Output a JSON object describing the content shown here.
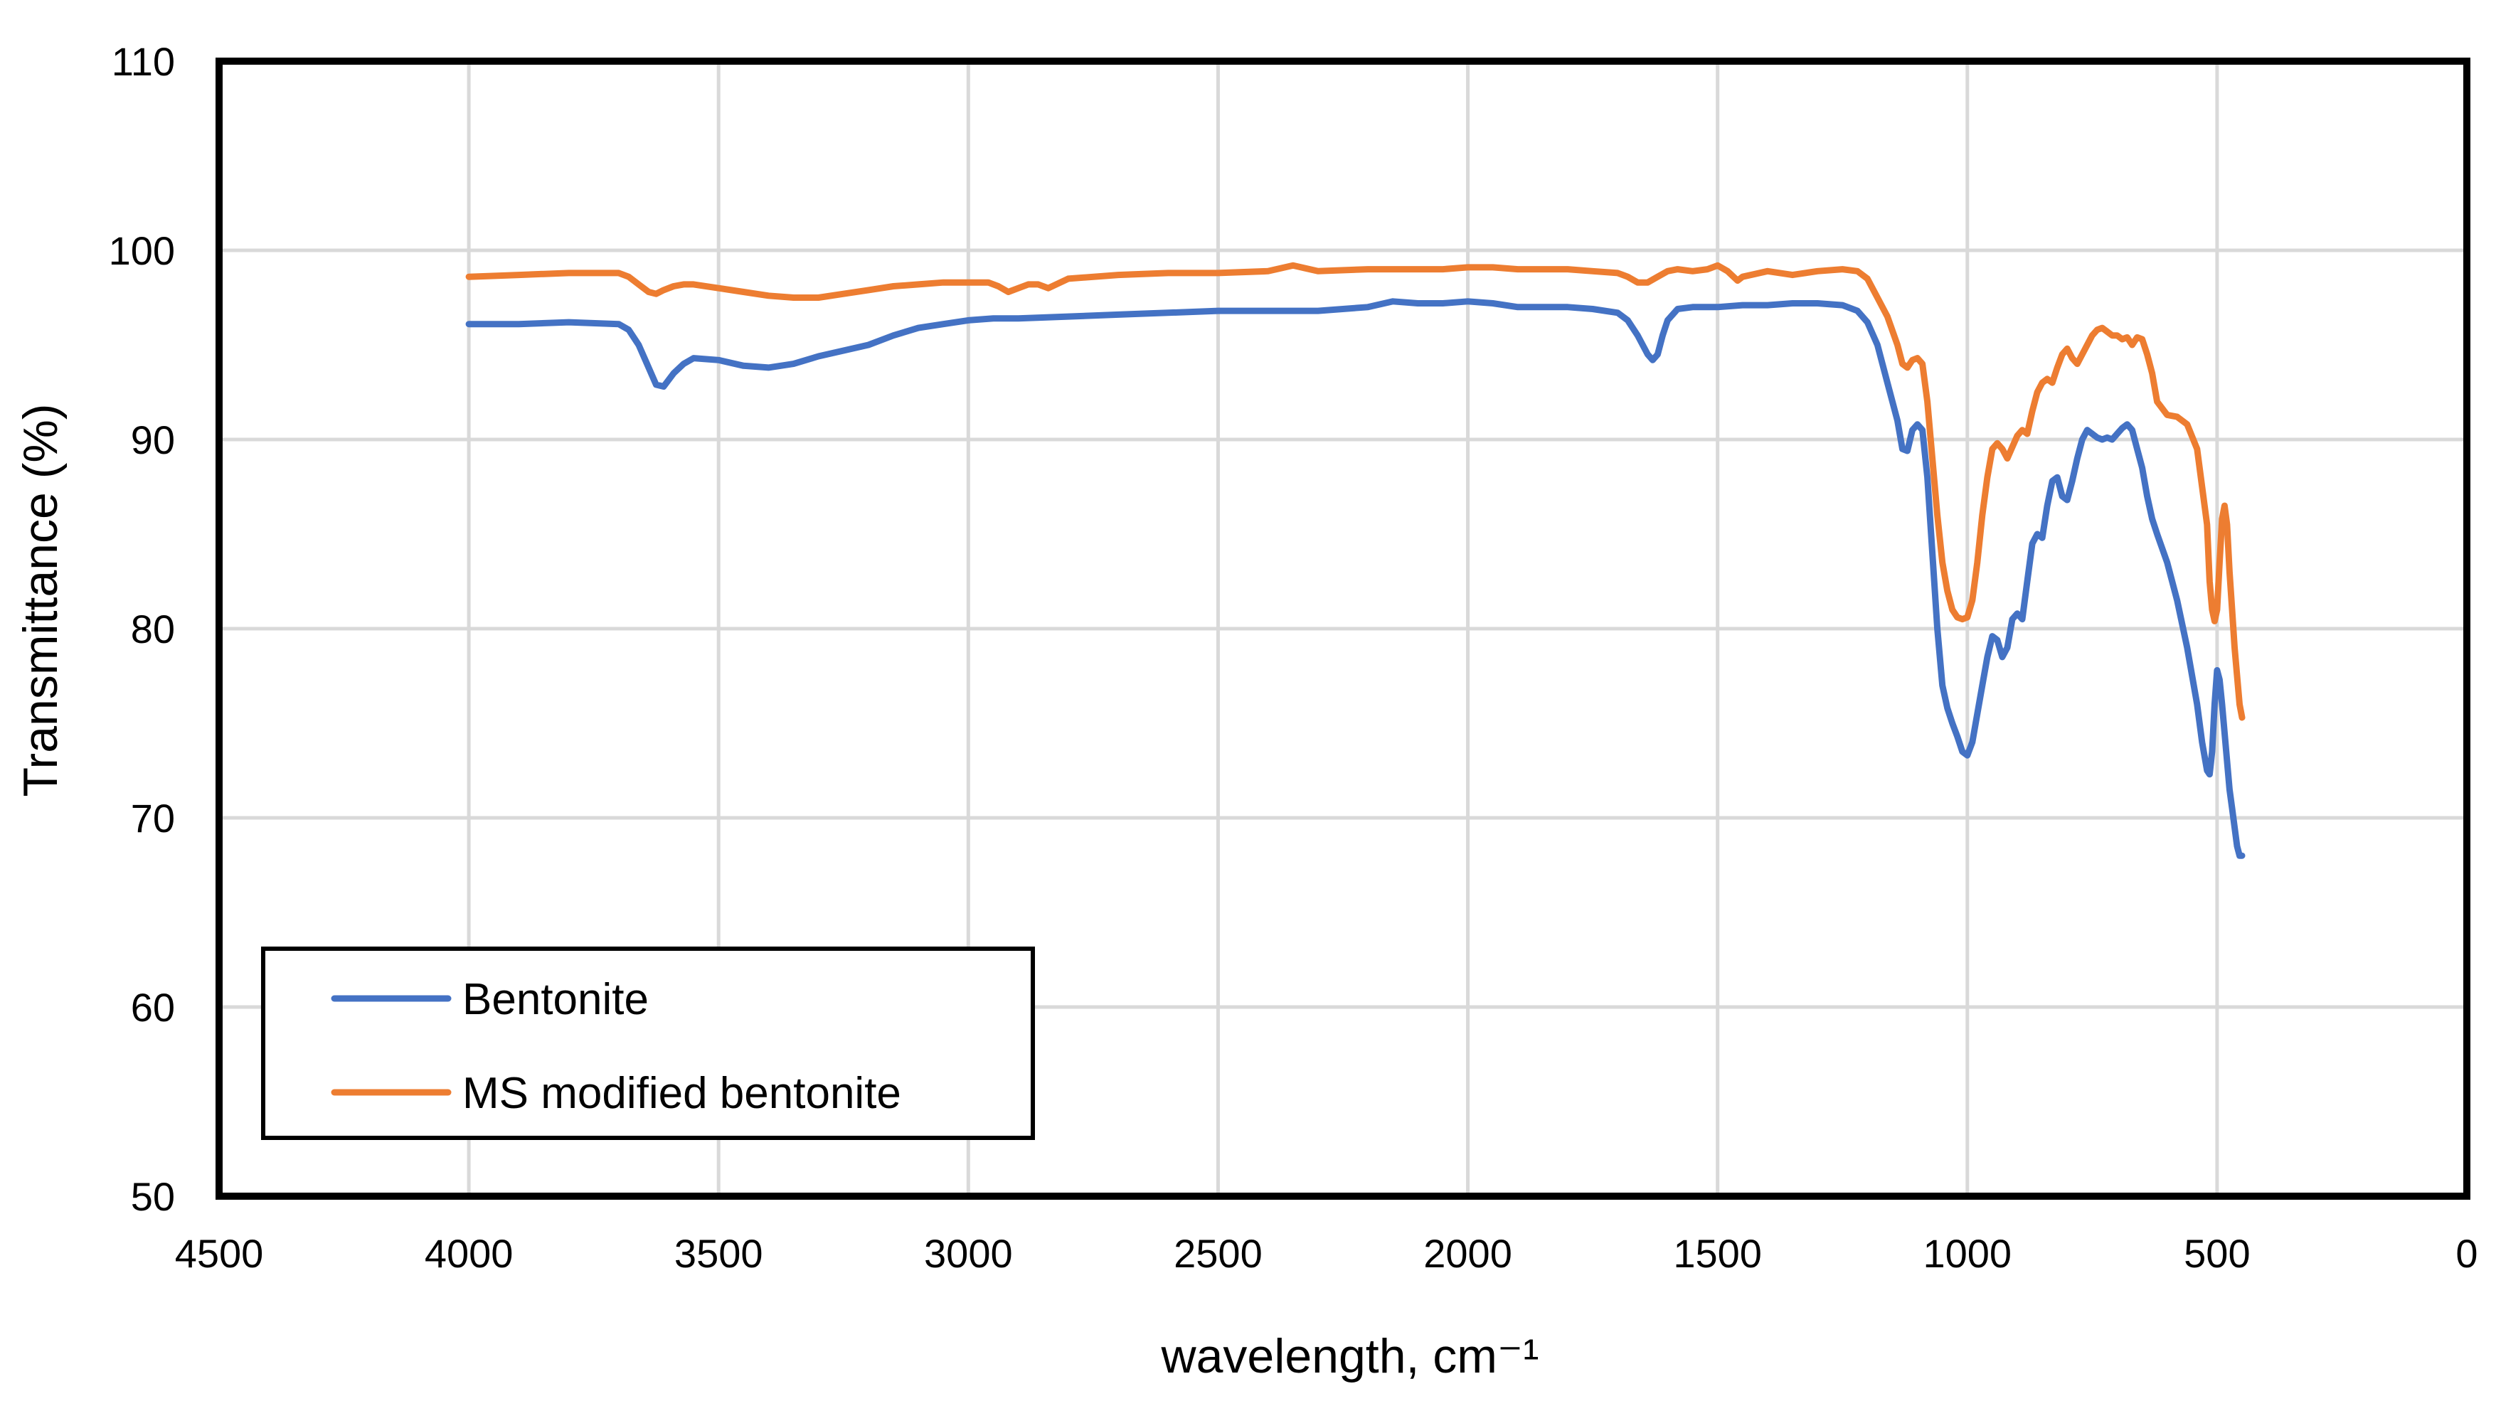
{
  "chart_data": {
    "type": "line",
    "xlabel": "wavelength, cm⁻¹",
    "ylabel": "Transmittance (%)",
    "xlim": [
      4500,
      0
    ],
    "ylim": [
      50,
      110
    ],
    "x_reversed": true,
    "x_ticks": [
      4500,
      4000,
      3500,
      3000,
      2500,
      2000,
      1500,
      1000,
      500,
      0
    ],
    "y_ticks": [
      50,
      60,
      70,
      80,
      90,
      100,
      110
    ],
    "x_tick_labels": [
      "4500",
      "4000",
      "3500",
      "3000",
      "2500",
      "2000",
      "1500",
      "1000",
      "500",
      "0"
    ],
    "y_tick_labels": [
      "50",
      "60",
      "70",
      "80",
      "90",
      "100",
      "110"
    ],
    "grid": true,
    "legend_position": "bottom-left",
    "series": [
      {
        "name": "Bentonite",
        "color": "#4472C4",
        "x": [
          4000,
          3900,
          3800,
          3700,
          3680,
          3660,
          3640,
          3625,
          3610,
          3590,
          3570,
          3550,
          3500,
          3450,
          3400,
          3350,
          3300,
          3250,
          3200,
          3150,
          3100,
          3050,
          3000,
          2950,
          2900,
          2800,
          2700,
          2600,
          2500,
          2400,
          2300,
          2200,
          2150,
          2100,
          2050,
          2000,
          1950,
          1900,
          1800,
          1750,
          1700,
          1680,
          1660,
          1640,
          1630,
          1620,
          1610,
          1600,
          1580,
          1550,
          1500,
          1450,
          1400,
          1350,
          1300,
          1250,
          1220,
          1200,
          1180,
          1160,
          1140,
          1130,
          1120,
          1110,
          1100,
          1090,
          1080,
          1070,
          1060,
          1050,
          1040,
          1030,
          1020,
          1010,
          1000,
          990,
          980,
          970,
          960,
          950,
          940,
          930,
          920,
          910,
          900,
          890,
          880,
          870,
          860,
          850,
          840,
          830,
          820,
          810,
          800,
          790,
          780,
          770,
          760,
          750,
          740,
          730,
          720,
          710,
          700,
          690,
          680,
          670,
          660,
          650,
          640,
          630,
          620,
          600,
          580,
          560,
          540,
          530,
          520,
          515,
          510,
          505,
          500,
          495,
          490,
          485,
          480,
          475,
          470,
          465,
          460,
          455,
          450
        ],
        "y": [
          96.1,
          96.1,
          96.2,
          96.1,
          95.8,
          95.0,
          93.8,
          92.9,
          92.8,
          93.5,
          94.0,
          94.3,
          94.2,
          93.9,
          93.8,
          94.0,
          94.4,
          94.7,
          95.0,
          95.5,
          95.9,
          96.1,
          96.3,
          96.4,
          96.4,
          96.5,
          96.6,
          96.7,
          96.8,
          96.8,
          96.8,
          97.0,
          97.3,
          97.2,
          97.2,
          97.3,
          97.2,
          97.0,
          97.0,
          96.9,
          96.7,
          96.3,
          95.5,
          94.5,
          94.2,
          94.5,
          95.5,
          96.3,
          96.9,
          97.0,
          97.0,
          97.1,
          97.1,
          97.2,
          97.2,
          97.1,
          96.8,
          96.2,
          95.0,
          93.0,
          91.0,
          89.5,
          89.4,
          90.5,
          90.8,
          90.5,
          88.0,
          84.0,
          80.0,
          77.0,
          75.8,
          75.0,
          74.3,
          73.5,
          73.3,
          74.0,
          75.5,
          77.0,
          78.5,
          79.6,
          79.4,
          78.5,
          79.0,
          80.5,
          80.8,
          80.5,
          82.5,
          84.5,
          85.0,
          84.8,
          86.5,
          87.8,
          88.0,
          87.0,
          86.8,
          87.8,
          89.0,
          90.0,
          90.5,
          90.3,
          90.1,
          90.0,
          90.1,
          90.0,
          90.3,
          90.6,
          90.8,
          90.5,
          89.5,
          88.5,
          87.0,
          85.8,
          85.0,
          83.5,
          81.5,
          79.0,
          76.0,
          74.0,
          72.5,
          72.3,
          73.5,
          76.0,
          77.8,
          77.3,
          76.0,
          74.5,
          73.0,
          71.5,
          70.5,
          69.5,
          68.5,
          68.0,
          68.0
        ]
      },
      {
        "name": "MS modified bentonite",
        "color": "#ED7D31",
        "x": [
          4000,
          3900,
          3800,
          3700,
          3680,
          3660,
          3640,
          3625,
          3610,
          3590,
          3570,
          3550,
          3500,
          3450,
          3400,
          3350,
          3300,
          3250,
          3200,
          3150,
          3100,
          3050,
          3000,
          2960,
          2940,
          2920,
          2900,
          2880,
          2860,
          2840,
          2800,
          2700,
          2600,
          2500,
          2400,
          2350,
          2300,
          2200,
          2150,
          2100,
          2050,
          2000,
          1950,
          1900,
          1800,
          1750,
          1700,
          1680,
          1660,
          1640,
          1620,
          1600,
          1580,
          1550,
          1520,
          1500,
          1480,
          1460,
          1450,
          1400,
          1350,
          1300,
          1250,
          1220,
          1200,
          1180,
          1160,
          1140,
          1130,
          1120,
          1110,
          1100,
          1090,
          1080,
          1070,
          1060,
          1050,
          1040,
          1030,
          1020,
          1010,
          1000,
          990,
          980,
          970,
          960,
          950,
          940,
          930,
          920,
          910,
          900,
          890,
          880,
          870,
          860,
          850,
          840,
          830,
          820,
          810,
          800,
          790,
          780,
          770,
          760,
          750,
          740,
          730,
          720,
          710,
          700,
          690,
          680,
          670,
          660,
          650,
          640,
          630,
          620,
          600,
          580,
          560,
          540,
          530,
          520,
          515,
          510,
          505,
          500,
          495,
          490,
          485,
          480,
          475,
          470,
          465,
          460,
          455,
          450
        ],
        "y": [
          98.6,
          98.7,
          98.8,
          98.8,
          98.6,
          98.2,
          97.8,
          97.7,
          97.9,
          98.1,
          98.2,
          98.2,
          98.0,
          97.8,
          97.6,
          97.5,
          97.5,
          97.7,
          97.9,
          98.1,
          98.2,
          98.3,
          98.3,
          98.3,
          98.1,
          97.8,
          98.0,
          98.2,
          98.2,
          98.0,
          98.5,
          98.7,
          98.8,
          98.8,
          98.9,
          99.2,
          98.9,
          99.0,
          99.0,
          99.0,
          99.0,
          99.1,
          99.1,
          99.0,
          99.0,
          98.9,
          98.8,
          98.6,
          98.3,
          98.3,
          98.6,
          98.9,
          99.0,
          98.9,
          99.0,
          99.2,
          98.9,
          98.4,
          98.6,
          98.9,
          98.7,
          98.9,
          99.0,
          98.9,
          98.5,
          97.5,
          96.5,
          95.0,
          94.0,
          93.8,
          94.2,
          94.3,
          94.0,
          92.0,
          89.0,
          86.0,
          83.5,
          82.0,
          81.0,
          80.6,
          80.5,
          80.6,
          81.5,
          83.5,
          86.0,
          88.0,
          89.5,
          89.8,
          89.5,
          89.0,
          89.6,
          90.2,
          90.5,
          90.3,
          91.5,
          92.5,
          93.0,
          93.2,
          93.0,
          93.8,
          94.5,
          94.8,
          94.3,
          94.0,
          94.5,
          95.0,
          95.5,
          95.8,
          95.9,
          95.7,
          95.5,
          95.5,
          95.3,
          95.4,
          95.0,
          95.4,
          95.3,
          94.5,
          93.5,
          92.0,
          91.3,
          91.2,
          90.8,
          89.5,
          87.5,
          85.5,
          82.5,
          81.0,
          80.4,
          81.0,
          83.5,
          85.8,
          86.5,
          85.5,
          83.0,
          81.0,
          79.0,
          77.5,
          76.0,
          75.3
        ]
      }
    ]
  }
}
